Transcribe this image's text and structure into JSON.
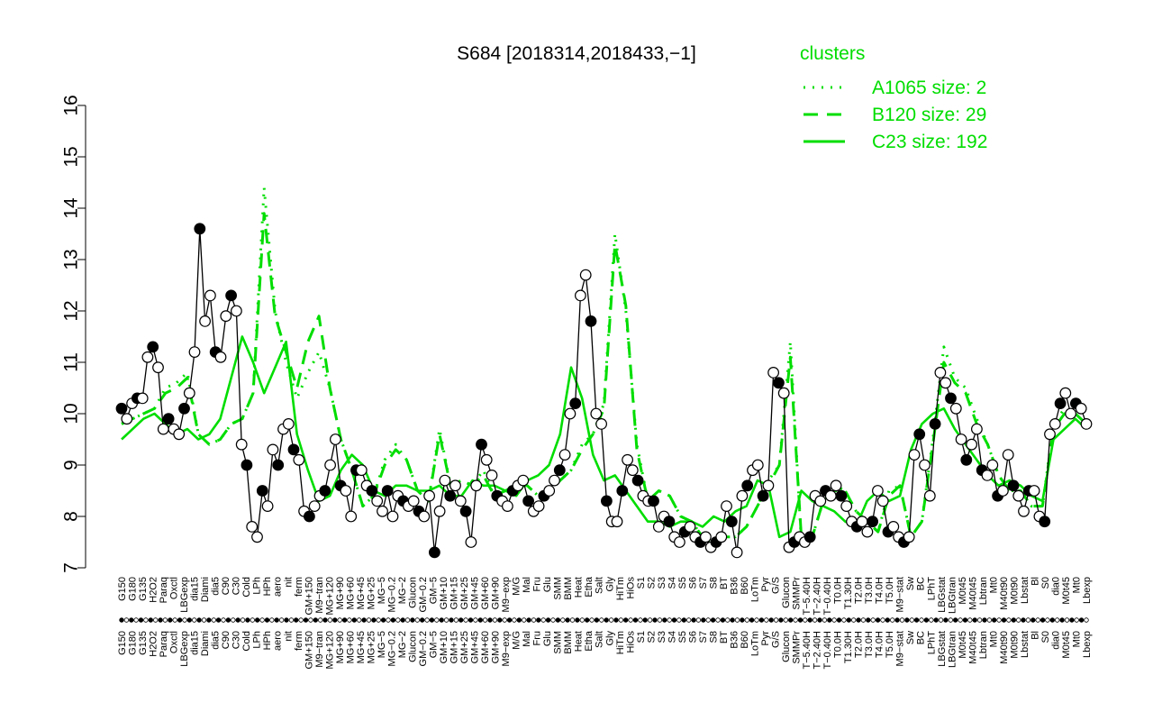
{
  "chart_data": {
    "type": "line",
    "title": "S684 [2018314,2018433,−1]",
    "xlabel": "",
    "ylabel": "",
    "ylim": [
      7,
      16
    ],
    "yticks": [
      7,
      8,
      9,
      10,
      11,
      12,
      13,
      14,
      15,
      16
    ],
    "ytick_labels": [
      "7",
      "8",
      "9",
      "10",
      "11",
      "12",
      "13",
      "14",
      "15",
      "16"
    ],
    "grid": false,
    "legend_placement": "top-right",
    "legend_title": "clusters",
    "legend": [
      {
        "label": "A1065 size: 2",
        "style": "dotted",
        "color": "#00dd00"
      },
      {
        "label": "B120 size: 29",
        "style": "dashed",
        "color": "#00dd00"
      },
      {
        "label": "C23 size: 192",
        "style": "solid",
        "color": "#00dd00"
      }
    ],
    "x_tick_labels": [
      "G150",
      "G180",
      "G135",
      "H2O2",
      "Paraq",
      "Oxctl",
      "LBGexp",
      "dia15",
      "Diami",
      "dia5",
      "C90",
      "C30",
      "Cold",
      "LPh",
      "HPh",
      "aero",
      "nit",
      "ferm",
      "GM+150",
      "M9−tran",
      "MG+120",
      "MG+90",
      "MG+60",
      "MG+45",
      "MG+25",
      "MG−5",
      "MG−0.2",
      "MG−2",
      "Glucon",
      "GM−0.2",
      "GM−5",
      "GM+10",
      "GM+15",
      "GM+25",
      "GM+45",
      "GM+60",
      "GM+90",
      "M9−exp",
      "M/G",
      "Mal",
      "Fru",
      "Glu",
      "SMM",
      "BMM",
      "Heat",
      "Etha",
      "Salt",
      "Gly",
      "HiTm",
      "HiOs",
      "S1",
      "S2",
      "S3",
      "S4",
      "S5",
      "S6",
      "S7",
      "S8",
      "BT",
      "B36",
      "B60",
      "LoTm",
      "Pyr",
      "G/S",
      "Glucon",
      "SMMPr",
      "T−5.40H",
      "T−2.40H",
      "T−0.40H",
      "T0.0H",
      "T1.30H",
      "T2.0H",
      "T3.0H",
      "T4.0H",
      "T5.0H",
      "M9−stat",
      "Sw",
      "BC",
      "LPhT",
      "LBGstat",
      "LBGtran",
      "M0t45",
      "M40t45",
      "Lbtran",
      "Mt0",
      "M40t90",
      "M0t90",
      "Lbstat",
      "Bl",
      "S0",
      "dia0",
      "M0t45",
      "Mt0",
      "Lbexp"
    ],
    "series": [
      {
        "style": "solid",
        "color": "#000000",
        "marker": "circle",
        "values": [
          10.1,
          9.9,
          10.2,
          10.3,
          10.3,
          11.1,
          11.3,
          10.9,
          9.7,
          9.9,
          9.7,
          9.6,
          10.1,
          10.4,
          11.2,
          13.6,
          11.8,
          12.3,
          11.2,
          11.1,
          11.9,
          12.3,
          12.0,
          9.4,
          9.0,
          7.8,
          7.6,
          8.5,
          8.2,
          9.3,
          9.0,
          9.7,
          9.8,
          9.3,
          9.1,
          8.1,
          8.0,
          8.2,
          8.4,
          8.5,
          9.0,
          9.5,
          8.6,
          8.5,
          8.0,
          8.9,
          8.9,
          8.6,
          8.5,
          8.3,
          8.1,
          8.5,
          8.0,
          8.4,
          8.3,
          8.2,
          8.3,
          8.1,
          8.0,
          8.4,
          7.3,
          8.1,
          8.7,
          8.4,
          8.6,
          8.3,
          8.1,
          7.5,
          8.6,
          9.4,
          9.1,
          8.8,
          8.4,
          8.3,
          8.2,
          8.5,
          8.6,
          8.7,
          8.3,
          8.1,
          8.2,
          8.4,
          8.5,
          8.7,
          8.9,
          9.2,
          10.0,
          10.2,
          12.3,
          12.7,
          11.8,
          10.0,
          9.8,
          8.3,
          7.9,
          7.9,
          8.5,
          9.1,
          8.9,
          8.7,
          8.4,
          8.3,
          8.3,
          7.8,
          8.0,
          7.9,
          7.6,
          7.5,
          7.7,
          7.8,
          7.6,
          7.5,
          7.6,
          7.4,
          7.5,
          7.6,
          8.2,
          7.9,
          7.3,
          8.4,
          8.6,
          8.9,
          9.0,
          8.4,
          8.6,
          10.8,
          10.6,
          10.4,
          7.4,
          7.5,
          7.6,
          7.5,
          7.6,
          8.4,
          8.3,
          8.5,
          8.4,
          8.6,
          8.4,
          8.2,
          7.9,
          7.8,
          7.9,
          7.7,
          7.9,
          8.5,
          8.3,
          7.7,
          7.8,
          7.6,
          7.5,
          7.6,
          9.2,
          9.6,
          9.0,
          8.4,
          9.8,
          10.8,
          10.6,
          10.3,
          10.1,
          9.5,
          9.1,
          9.4,
          9.7,
          8.9,
          8.8,
          9.0,
          8.4,
          8.5,
          9.2,
          8.6,
          8.4,
          8.1,
          8.5,
          8.5,
          8.0,
          7.9,
          9.6,
          9.8,
          10.2,
          10.4,
          10.0,
          10.2,
          10.1,
          9.8
        ]
      },
      {
        "name": "A1065 size: 2",
        "style": "dotted",
        "color": "#00dd00",
        "values": [
          9.8,
          9.9,
          10.0,
          10.1,
          10.5,
          10.6,
          10.8,
          9.6,
          9.4,
          9.5,
          9.8,
          9.9,
          10.4,
          14.4,
          12.0,
          11.0,
          10.3,
          10.8,
          11.2,
          10.5,
          9.5,
          8.9,
          8.2,
          8.4,
          9.1,
          9.4,
          9.1,
          8.5,
          8.3,
          9.7,
          8.6,
          8.7,
          8.6,
          8.9,
          8.4,
          8.5,
          8.6,
          8.6,
          8.4,
          8.5,
          8.7,
          8.9,
          9.4,
          9.6,
          10.2,
          13.5,
          12.0,
          9.4,
          8.3,
          8.5,
          8.4,
          8.0,
          7.9,
          7.6,
          7.5,
          7.6,
          7.6,
          7.8,
          8.2,
          8.7,
          9.0,
          11.4,
          7.5,
          7.6,
          8.3,
          8.6,
          8.5,
          8.1,
          7.9,
          7.7,
          8.5,
          8.6,
          7.6,
          7.9,
          9.5,
          11.3,
          10.7,
          10.5,
          9.9,
          9.4,
          8.8,
          8.5,
          8.5,
          8.2,
          8.2,
          9.8,
          10.1,
          10.0,
          9.8
        ]
      },
      {
        "name": "B120 size: 29",
        "style": "dashed",
        "color": "#00dd00",
        "values": [
          9.8,
          9.9,
          10.0,
          10.1,
          10.4,
          10.5,
          10.7,
          9.6,
          9.4,
          9.5,
          9.8,
          9.9,
          10.4,
          13.9,
          11.9,
          11.2,
          10.5,
          11.4,
          11.9,
          10.5,
          9.5,
          8.9,
          8.2,
          8.4,
          9.0,
          9.3,
          9.1,
          8.5,
          8.3,
          9.6,
          8.6,
          8.7,
          8.6,
          8.8,
          8.4,
          8.5,
          8.6,
          8.6,
          8.4,
          8.5,
          8.7,
          8.9,
          9.3,
          9.6,
          10.1,
          13.3,
          12.1,
          9.3,
          8.3,
          8.5,
          8.4,
          8.0,
          7.9,
          7.6,
          7.5,
          7.6,
          7.6,
          7.8,
          8.2,
          8.6,
          9.0,
          11.1,
          7.6,
          7.6,
          8.3,
          8.5,
          8.5,
          8.1,
          7.9,
          7.7,
          8.4,
          8.6,
          7.6,
          7.9,
          9.4,
          11.0,
          10.6,
          10.4,
          9.8,
          9.4,
          8.8,
          8.5,
          8.5,
          8.2,
          8.2,
          9.7,
          10.0,
          10.0,
          9.8
        ]
      },
      {
        "name": "C23 size: 192",
        "style": "solid",
        "color": "#00dd00",
        "values": [
          9.5,
          9.7,
          9.9,
          10.0,
          9.8,
          9.6,
          9.7,
          9.5,
          9.6,
          9.9,
          10.7,
          11.5,
          11.0,
          10.4,
          10.9,
          11.4,
          9.6,
          8.9,
          8.3,
          8.4,
          8.9,
          9.2,
          9.0,
          8.5,
          8.4,
          8.6,
          8.6,
          8.5,
          8.5,
          8.6,
          8.4,
          8.4,
          8.7,
          8.6,
          8.6,
          8.5,
          8.4,
          8.7,
          8.8,
          9.0,
          9.6,
          10.9,
          10.3,
          9.2,
          8.7,
          8.8,
          8.5,
          8.2,
          7.9,
          7.9,
          7.8,
          7.9,
          7.9,
          7.8,
          8.0,
          7.9,
          8.1,
          8.2,
          8.7,
          8.6,
          7.6,
          7.7,
          8.5,
          8.3,
          8.2,
          8.1,
          7.9,
          7.8,
          8.3,
          8.5,
          8.3,
          8.4,
          9.3,
          9.8,
          10.0,
          10.1,
          9.7,
          9.4,
          9.1,
          8.8,
          8.6,
          8.7,
          8.6,
          8.4,
          8.3,
          9.5,
          9.7,
          9.9,
          9.7
        ]
      }
    ]
  }
}
